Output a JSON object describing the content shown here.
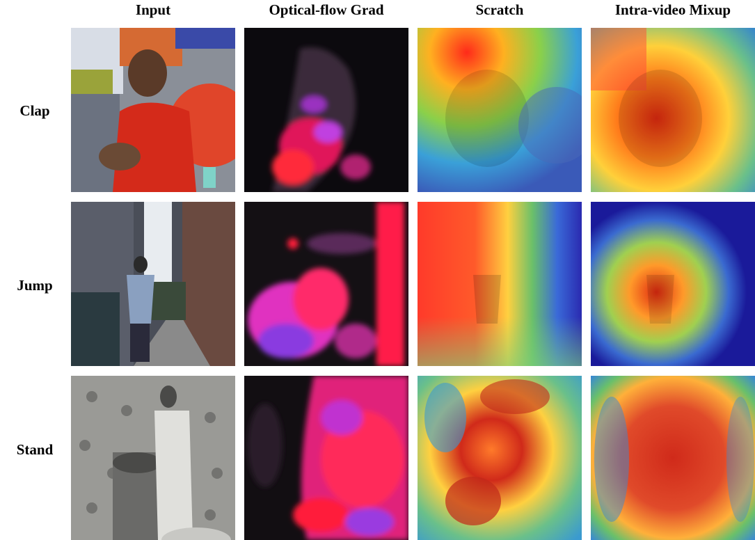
{
  "columns": [
    "Input",
    "Optical-flow Grad",
    "Scratch",
    "Intra-video Mixup"
  ],
  "rows": [
    "Clap",
    "Jump",
    "Stand"
  ]
}
